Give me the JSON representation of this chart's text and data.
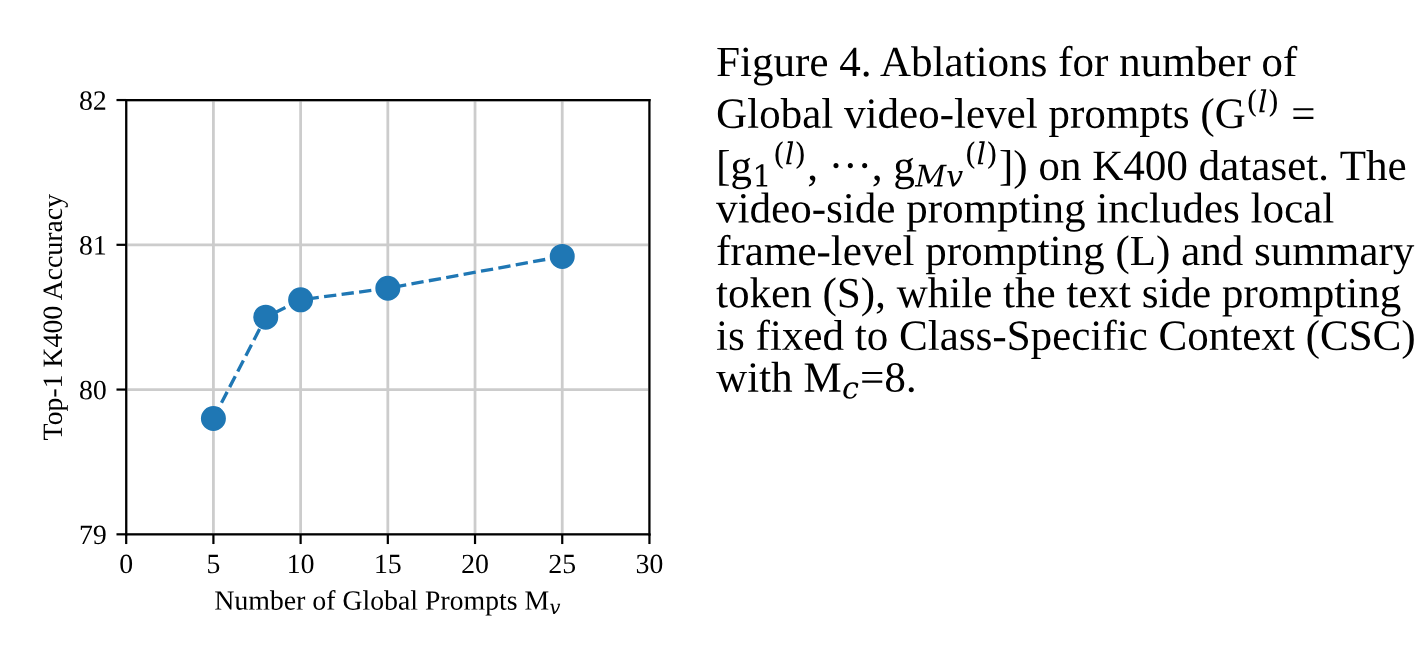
{
  "chart_data": {
    "type": "line",
    "xlabel": "Number of Global Prompts M$_{v}$",
    "ylabel": "Top-1 K400 Accuracy",
    "x": [
      5,
      8,
      10,
      15,
      25
    ],
    "series": [
      {
        "color": "#1f77b4",
        "values": [
          79.8,
          80.5,
          80.62,
          80.7,
          80.92
        ]
      }
    ],
    "xlim": [
      0,
      30
    ],
    "xticks": [
      0,
      5,
      10,
      15,
      20,
      25,
      30
    ],
    "ylim": [
      79,
      82
    ],
    "yticks": [
      79,
      80,
      81,
      82
    ],
    "grid": true,
    "marker": "circle",
    "line_style": "dashed",
    "annotations": [
      "Figure 4. Ablations for number of Global video-level prompts (G$^{(l)}$ = [g$_{1}$$^{(l)}$, ···, g$_{Mv}$$^{(l)}$]) on K400 dataset. The video-side prompting includes local frame-level prompting (L) and summary token (S), while the text side prompting is fixed to Class-Specific Context (CSC) with M$_{c}$=8."
    ]
  }
}
